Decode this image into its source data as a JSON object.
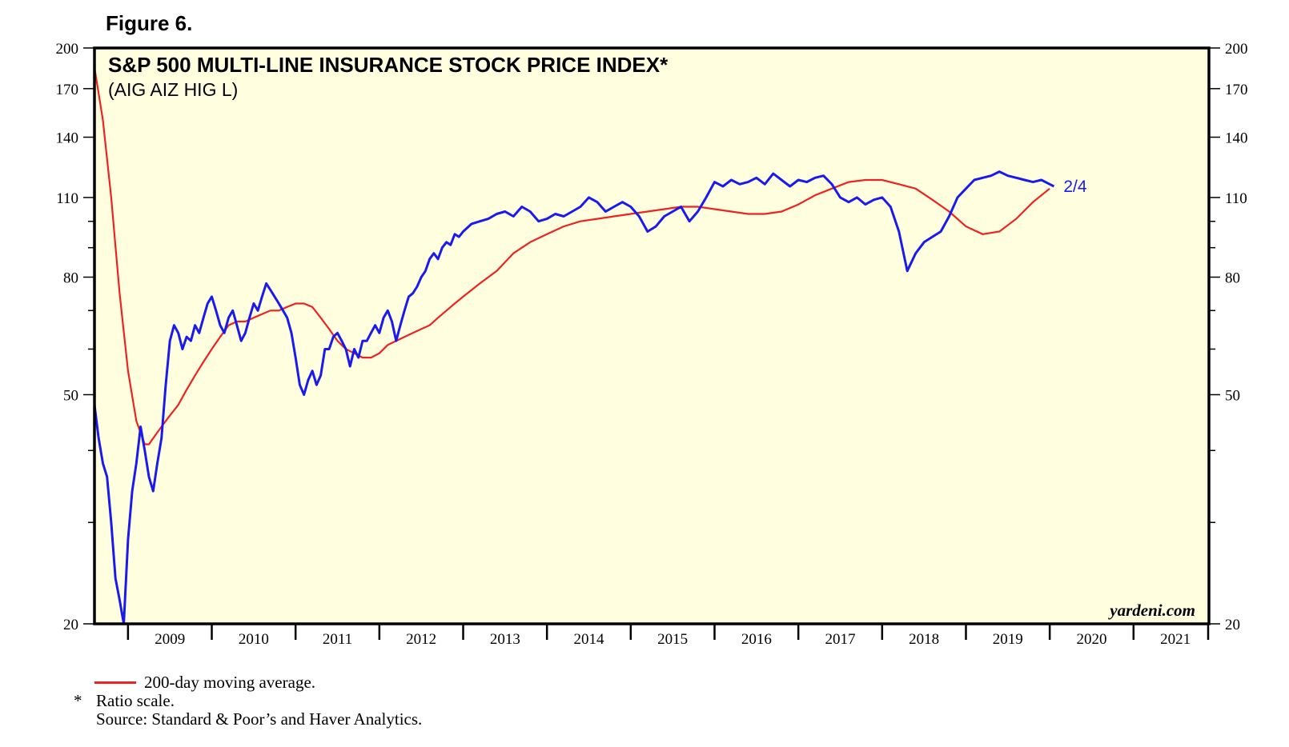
{
  "figure_label": "Figure 6.",
  "chart_data": {
    "type": "line",
    "title": "S&P 500 MULTI-LINE INSURANCE STOCK PRICE INDEX*",
    "subtitle": "(AIG AIZ HIG L)",
    "credit": "yardeni.com",
    "end_label": "2/4",
    "scale": "log",
    "ylim": [
      20,
      200
    ],
    "y_ticks": [
      20,
      50,
      80,
      110,
      140,
      170,
      200
    ],
    "y_minor_ticks": [
      30,
      40,
      60,
      70,
      90,
      100
    ],
    "x_range": [
      2008.6,
      2021.9
    ],
    "x_labels": [
      "2009",
      "2010",
      "2011",
      "2012",
      "2013",
      "2014",
      "2015",
      "2016",
      "2017",
      "2018",
      "2019",
      "2020",
      "2021"
    ],
    "colors": {
      "price": "#1a1aee",
      "moving_average": "#ee2222",
      "panel": "#ffffe0"
    },
    "series": [
      {
        "name": "S&P 500 Multi-Line Insurance Index",
        "x": [
          2008.6,
          2008.65,
          2008.7,
          2008.75,
          2008.8,
          2008.85,
          2008.9,
          2008.95,
          2009.0,
          2009.05,
          2009.1,
          2009.15,
          2009.2,
          2009.25,
          2009.3,
          2009.35,
          2009.4,
          2009.45,
          2009.5,
          2009.55,
          2009.6,
          2009.65,
          2009.7,
          2009.75,
          2009.8,
          2009.85,
          2009.9,
          2009.95,
          2010.0,
          2010.05,
          2010.1,
          2010.15,
          2010.2,
          2010.25,
          2010.3,
          2010.35,
          2010.4,
          2010.45,
          2010.5,
          2010.55,
          2010.6,
          2010.65,
          2010.7,
          2010.75,
          2010.8,
          2010.85,
          2010.9,
          2010.95,
          2011.0,
          2011.05,
          2011.1,
          2011.15,
          2011.2,
          2011.25,
          2011.3,
          2011.35,
          2011.4,
          2011.45,
          2011.5,
          2011.55,
          2011.6,
          2011.65,
          2011.7,
          2011.75,
          2011.8,
          2011.85,
          2011.9,
          2011.95,
          2012.0,
          2012.05,
          2012.1,
          2012.15,
          2012.2,
          2012.25,
          2012.3,
          2012.35,
          2012.4,
          2012.45,
          2012.5,
          2012.55,
          2012.6,
          2012.65,
          2012.7,
          2012.75,
          2012.8,
          2012.85,
          2012.9,
          2012.95,
          2013.0,
          2013.1,
          2013.2,
          2013.3,
          2013.4,
          2013.5,
          2013.6,
          2013.7,
          2013.8,
          2013.9,
          2014.0,
          2014.1,
          2014.2,
          2014.3,
          2014.4,
          2014.5,
          2014.6,
          2014.7,
          2014.8,
          2014.9,
          2015.0,
          2015.1,
          2015.2,
          2015.3,
          2015.4,
          2015.5,
          2015.6,
          2015.7,
          2015.8,
          2015.9,
          2016.0,
          2016.1,
          2016.2,
          2016.3,
          2016.4,
          2016.5,
          2016.6,
          2016.7,
          2016.8,
          2016.9,
          2017.0,
          2017.1,
          2017.2,
          2017.3,
          2017.4,
          2017.5,
          2017.6,
          2017.7,
          2017.8,
          2017.9,
          2018.0,
          2018.1,
          2018.2,
          2018.3,
          2018.4,
          2018.5,
          2018.6,
          2018.7,
          2018.8,
          2018.9,
          2019.0,
          2019.1,
          2019.2,
          2019.3,
          2019.4,
          2019.5,
          2019.6,
          2019.7,
          2019.8,
          2019.9,
          2020.0,
          2020.05
        ],
        "values": [
          48,
          42,
          38,
          36,
          30,
          24,
          22,
          20,
          28,
          34,
          38,
          44,
          40,
          36,
          34,
          38,
          42,
          52,
          62,
          66,
          64,
          60,
          63,
          62,
          66,
          64,
          68,
          72,
          74,
          70,
          66,
          64,
          68,
          70,
          66,
          62,
          64,
          68,
          72,
          70,
          74,
          78,
          76,
          74,
          72,
          70,
          68,
          64,
          58,
          52,
          50,
          53,
          55,
          52,
          54,
          60,
          60,
          63,
          64,
          62,
          60,
          56,
          60,
          58,
          62,
          62,
          64,
          66,
          64,
          68,
          70,
          67,
          62,
          66,
          70,
          74,
          75,
          77,
          80,
          82,
          86,
          88,
          86,
          90,
          92,
          91,
          95,
          94,
          96,
          99,
          100,
          101,
          103,
          104,
          102,
          106,
          104,
          100,
          101,
          103,
          102,
          104,
          106,
          110,
          108,
          104,
          106,
          108,
          106,
          102,
          96,
          98,
          102,
          104,
          106,
          100,
          104,
          110,
          117,
          115,
          118,
          116,
          117,
          119,
          116,
          121,
          118,
          115,
          118,
          117,
          119,
          120,
          116,
          110,
          108,
          110,
          107,
          109,
          110,
          106,
          96,
          82,
          88,
          92,
          94,
          96,
          102,
          110,
          114,
          118,
          119,
          120,
          122,
          120,
          119,
          118,
          117,
          118,
          116,
          115
        ]
      },
      {
        "name": "200-day moving average",
        "x": [
          2008.6,
          2008.7,
          2008.8,
          2008.9,
          2009.0,
          2009.1,
          2009.2,
          2009.25,
          2009.3,
          2009.4,
          2009.5,
          2009.6,
          2009.7,
          2009.8,
          2009.9,
          2010.0,
          2010.1,
          2010.2,
          2010.3,
          2010.4,
          2010.5,
          2010.6,
          2010.7,
          2010.8,
          2010.9,
          2011.0,
          2011.1,
          2011.2,
          2011.3,
          2011.4,
          2011.5,
          2011.6,
          2011.7,
          2011.8,
          2011.9,
          2012.0,
          2012.1,
          2012.2,
          2012.3,
          2012.4,
          2012.5,
          2012.6,
          2012.7,
          2012.8,
          2012.9,
          2013.0,
          2013.2,
          2013.4,
          2013.6,
          2013.8,
          2014.0,
          2014.2,
          2014.4,
          2014.6,
          2014.8,
          2015.0,
          2015.2,
          2015.4,
          2015.6,
          2015.8,
          2016.0,
          2016.2,
          2016.4,
          2016.6,
          2016.8,
          2017.0,
          2017.2,
          2017.4,
          2017.6,
          2017.8,
          2018.0,
          2018.2,
          2018.4,
          2018.6,
          2018.8,
          2019.0,
          2019.2,
          2019.4,
          2019.6,
          2019.8,
          2020.0
        ],
        "values": [
          185,
          150,
          110,
          75,
          55,
          45,
          41,
          41,
          42,
          44,
          46,
          48,
          51,
          54,
          57,
          60,
          63,
          66,
          67,
          67,
          68,
          69,
          70,
          70,
          71,
          72,
          72,
          71,
          68,
          65,
          62,
          60,
          59,
          58,
          58,
          59,
          61,
          62,
          63,
          64,
          65,
          66,
          68,
          70,
          72,
          74,
          78,
          82,
          88,
          92,
          95,
          98,
          100,
          101,
          102,
          103,
          104,
          105,
          106,
          106,
          105,
          104,
          103,
          103,
          104,
          107,
          111,
          114,
          117,
          118,
          118,
          116,
          114,
          109,
          104,
          98,
          95,
          96,
          101,
          108,
          114
        ]
      }
    ]
  },
  "notes": {
    "legend_label": "200-day moving average.",
    "star": "*",
    "ratio_note": "Ratio scale.",
    "source": "Source: Standard & Poor’s and Haver Analytics."
  }
}
